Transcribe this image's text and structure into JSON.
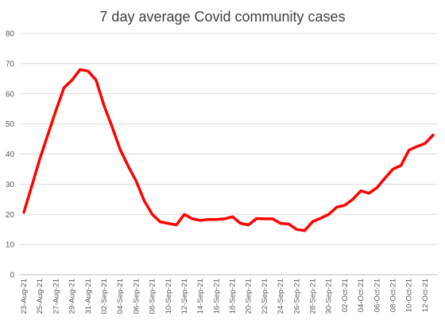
{
  "chart_data": {
    "type": "line",
    "title": "7 day average Covid community cases",
    "xlabel": "",
    "ylabel": "",
    "ylim": [
      0,
      80
    ],
    "yticks": [
      0,
      10,
      20,
      30,
      40,
      50,
      60,
      70,
      80
    ],
    "grid": true,
    "legend": "none",
    "line_color": "#ff0000",
    "x": [
      "23-Aug-21",
      "24-Aug-21",
      "25-Aug-21",
      "26-Aug-21",
      "27-Aug-21",
      "28-Aug-21",
      "29-Aug-21",
      "30-Aug-21",
      "31-Aug-21",
      "01-Sep-21",
      "02-Sep-21",
      "03-Sep-21",
      "04-Sep-21",
      "05-Sep-21",
      "06-Sep-21",
      "07-Sep-21",
      "08-Sep-21",
      "09-Sep-21",
      "10-Sep-21",
      "11-Sep-21",
      "12-Sep-21",
      "13-Sep-21",
      "14-Sep-21",
      "15-Sep-21",
      "16-Sep-21",
      "17-Sep-21",
      "18-Sep-21",
      "19-Sep-21",
      "20-Sep-21",
      "21-Sep-21",
      "22-Sep-21",
      "23-Sep-21",
      "24-Sep-21",
      "25-Sep-21",
      "26-Sep-21",
      "27-Sep-21",
      "28-Sep-21",
      "29-Sep-21",
      "30-Sep-21",
      "01-Oct-21",
      "02-Oct-21",
      "03-Oct-21",
      "04-Oct-21",
      "05-Oct-21",
      "06-Oct-21",
      "07-Oct-21",
      "08-Oct-21",
      "09-Oct-21",
      "10-Oct-21",
      "11-Oct-21",
      "12-Oct-21",
      "13-Oct-21"
    ],
    "xtick_labels": [
      "23-Aug-21",
      "25-Aug-21",
      "27-Aug-21",
      "29-Aug-21",
      "31-Aug-21",
      "02-Sep-21",
      "04-Sep-21",
      "06-Sep-21",
      "08-Sep-21",
      "10-Sep-21",
      "12-Sep-21",
      "14-Sep-21",
      "16-Sep-21",
      "18-Sep-21",
      "20-Sep-21",
      "22-Sep-21",
      "24-Sep-21",
      "26-Sep-21",
      "28-Sep-21",
      "30-Sep-21",
      "02-Oct-21",
      "04-Oct-21",
      "06-Oct-21",
      "08-Oct-21",
      "10-Oct-21",
      "12-Oct-21"
    ],
    "series": [
      {
        "values": [
          20.7,
          29.5,
          38.5,
          46.5,
          54.5,
          62,
          64.5,
          68,
          67.5,
          64.5,
          56,
          49,
          41.5,
          36,
          31,
          24.5,
          20,
          17.5,
          17,
          16.5,
          20,
          18.5,
          18,
          18.3,
          18.3,
          18.5,
          19.2,
          17,
          16.5,
          18.6,
          18.5,
          18.5,
          17,
          16.8,
          15,
          14.6,
          17.6,
          18.7,
          20,
          22.4,
          23,
          25,
          27.8,
          27,
          28.8,
          32,
          35,
          36.2,
          41.3,
          42.5,
          43.5,
          46.3
        ]
      }
    ]
  }
}
